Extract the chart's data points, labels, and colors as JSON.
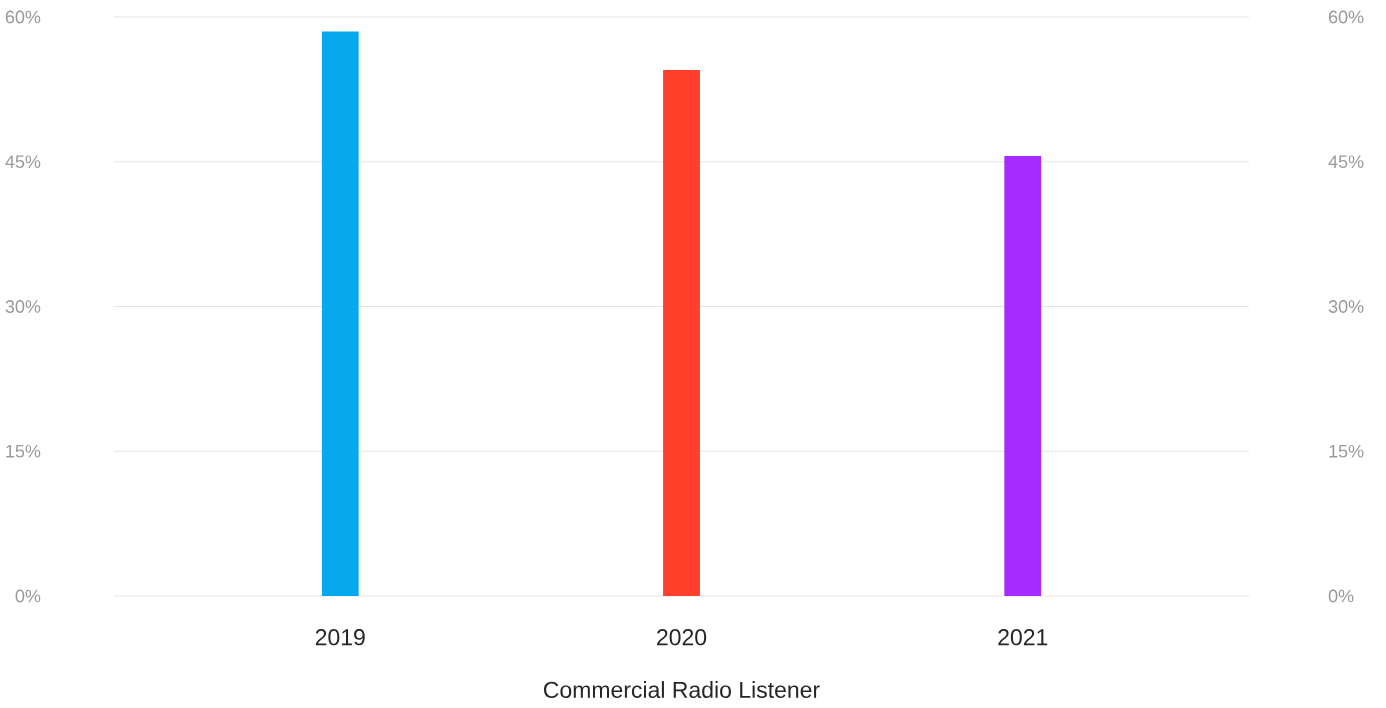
{
  "chart_data": {
    "type": "bar",
    "xlabel": "Commercial Radio Listener",
    "categories": [
      "2019",
      "2020",
      "2021"
    ],
    "values": [
      58.5,
      54.5,
      45.6
    ],
    "colors": [
      "#08a8ee",
      "#ff412c",
      "#a52bff"
    ],
    "ylim": [
      0,
      60
    ],
    "yticks": [
      {
        "value": 0,
        "label": "0%"
      },
      {
        "value": 15,
        "label": "15%"
      },
      {
        "value": 30,
        "label": "30%"
      },
      {
        "value": 45,
        "label": "45%"
      },
      {
        "value": 60,
        "label": "60%"
      }
    ],
    "y2lim": [
      0,
      60
    ],
    "y2ticks": [
      {
        "value": 0,
        "label": "0%"
      },
      {
        "value": 15,
        "label": "15%"
      },
      {
        "value": 30,
        "label": "30%"
      },
      {
        "value": 45,
        "label": "45%"
      },
      {
        "value": 60,
        "label": "60%"
      }
    ],
    "grid": "y"
  }
}
